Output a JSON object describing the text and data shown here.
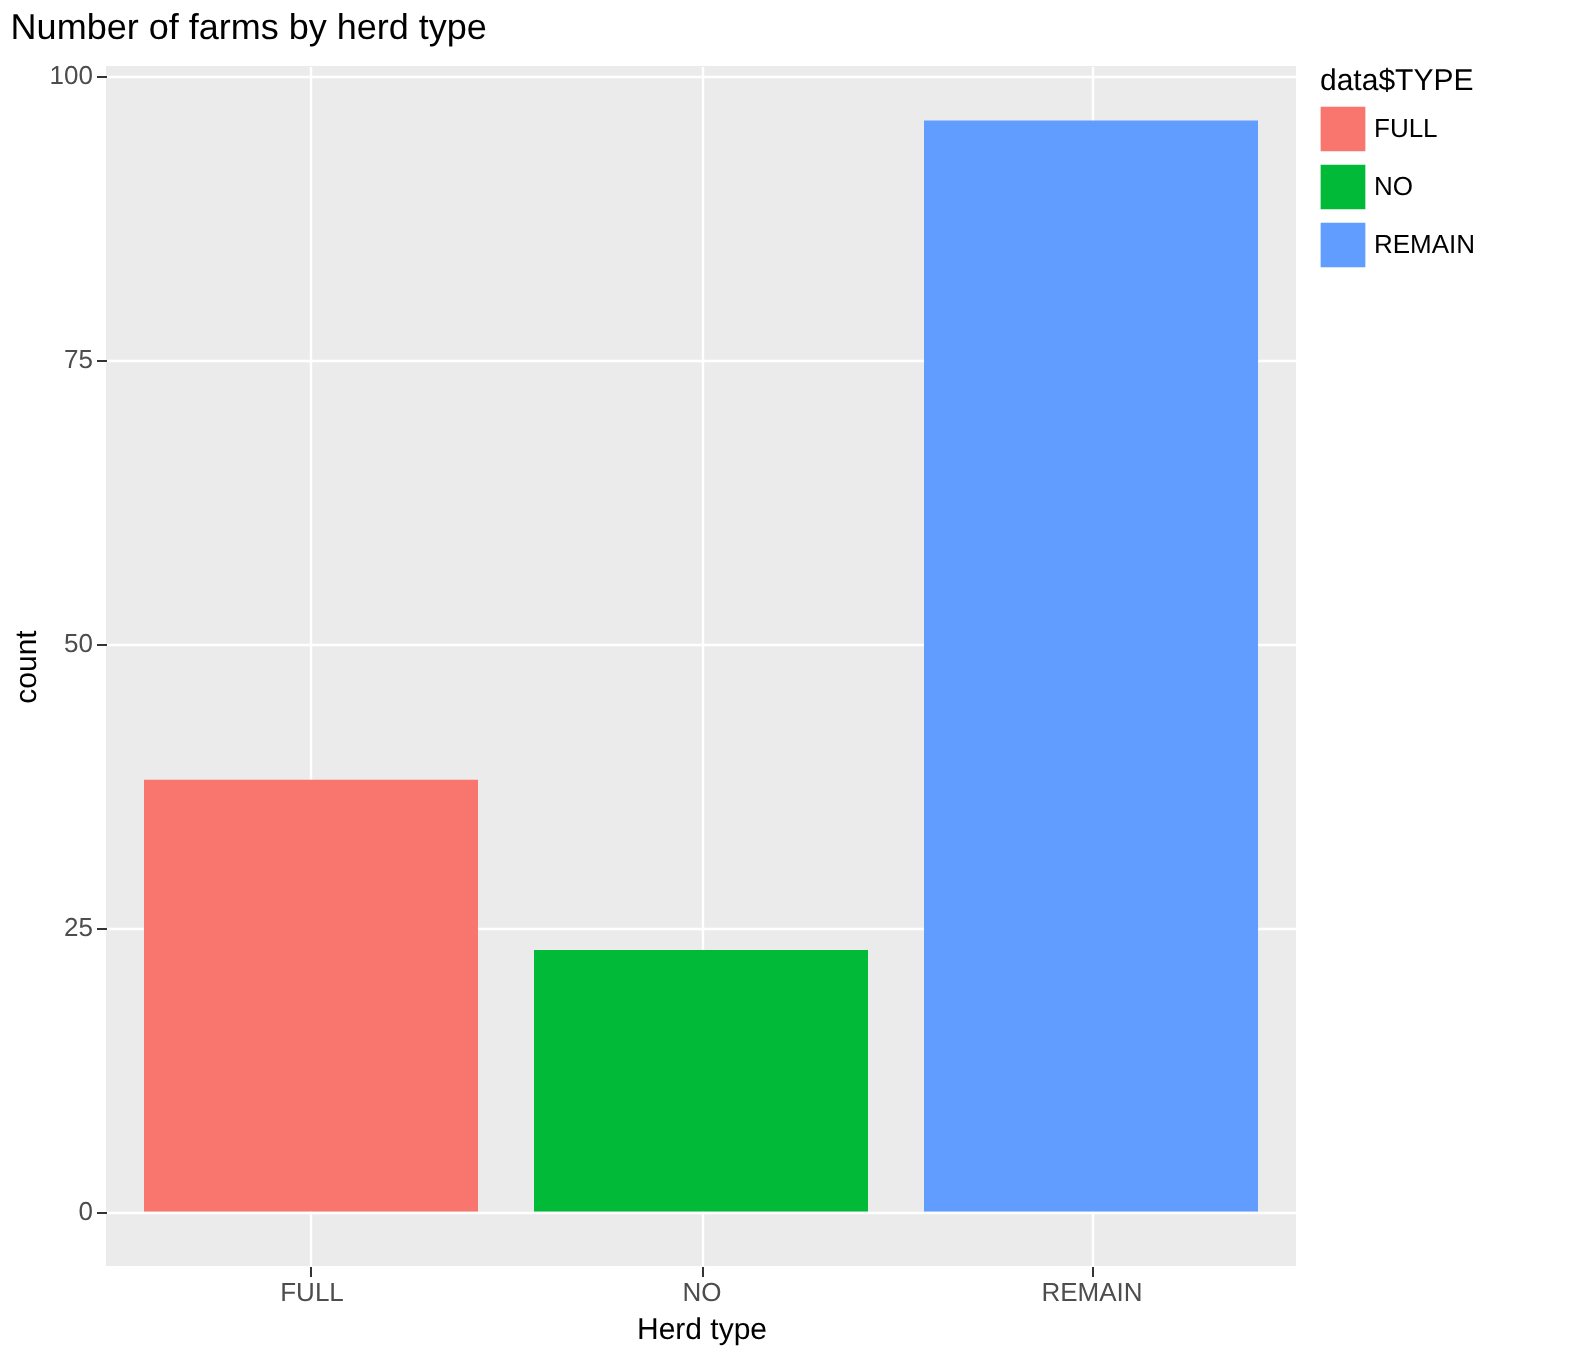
{
  "chart_data": {
    "type": "bar",
    "title": "Number of farms by herd type",
    "xlabel": "Herd type",
    "ylabel": "count",
    "legend_title": "data$TYPE",
    "categories": [
      "FULL",
      "NO",
      "REMAIN"
    ],
    "series": [
      {
        "name": "FULL",
        "color": "#f8766d",
        "values": [
          38,
          null,
          null
        ]
      },
      {
        "name": "NO",
        "color": "#00ba38",
        "values": [
          null,
          23,
          null
        ]
      },
      {
        "name": "REMAIN",
        "color": "#619cff",
        "values": [
          null,
          null,
          96
        ]
      }
    ],
    "ylim": [
      -4.8,
      100.8
    ],
    "yticks": [
      0,
      25,
      50,
      75,
      100
    ],
    "grid": true,
    "legend": "right"
  }
}
